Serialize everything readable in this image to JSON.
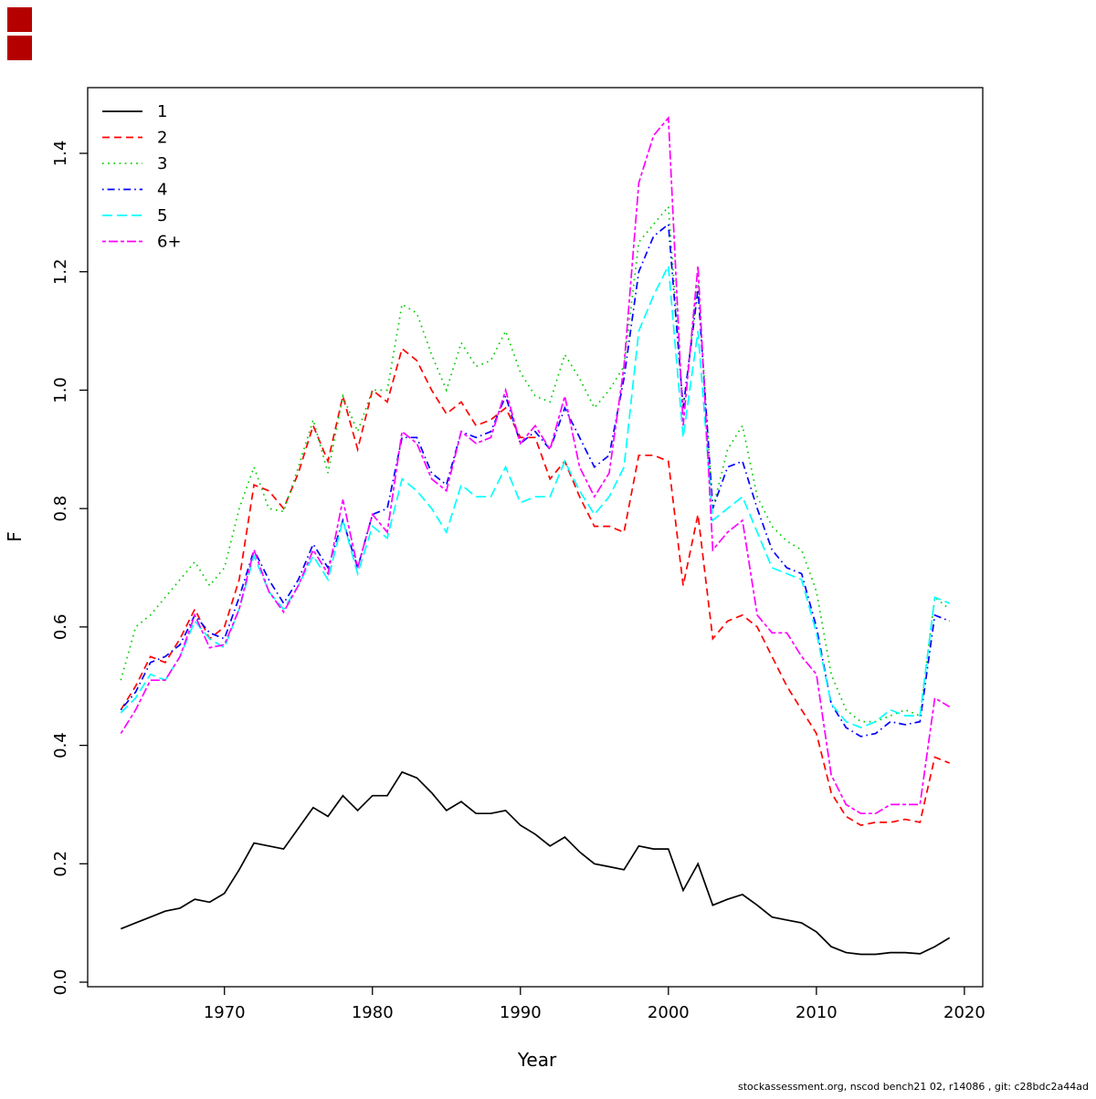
{
  "decorations": {
    "square_color": "#b50000"
  },
  "footer": {
    "credit": "stockassessment.org, nscod bench21 02, r14086 , git: c28bdc2a44ad"
  },
  "chart_data": {
    "type": "line",
    "title": "",
    "xlabel": "Year",
    "ylabel": "F",
    "xlim": [
      1963,
      2019
    ],
    "ylim": [
      0,
      1.46
    ],
    "xticks": [
      1970,
      1980,
      1990,
      2000,
      2010,
      2020
    ],
    "yticks": [
      0.0,
      0.2,
      0.4,
      0.6,
      0.8,
      1.0,
      1.2,
      1.4
    ],
    "grid": false,
    "legend_position": "top-left",
    "x": [
      1963,
      1964,
      1965,
      1966,
      1967,
      1968,
      1969,
      1970,
      1971,
      1972,
      1973,
      1974,
      1975,
      1976,
      1977,
      1978,
      1979,
      1980,
      1981,
      1982,
      1983,
      1984,
      1985,
      1986,
      1987,
      1988,
      1989,
      1990,
      1991,
      1992,
      1993,
      1994,
      1995,
      1996,
      1997,
      1998,
      1999,
      2000,
      2001,
      2002,
      2003,
      2004,
      2005,
      2006,
      2007,
      2008,
      2009,
      2010,
      2011,
      2012,
      2013,
      2014,
      2015,
      2016,
      2017,
      2018,
      2019
    ],
    "series": [
      {
        "name": "1",
        "color": "#000000",
        "linestyle": "solid",
        "values": [
          0.09,
          0.1,
          0.11,
          0.12,
          0.125,
          0.14,
          0.135,
          0.15,
          0.19,
          0.235,
          0.23,
          0.225,
          0.26,
          0.295,
          0.28,
          0.315,
          0.29,
          0.315,
          0.315,
          0.355,
          0.345,
          0.32,
          0.29,
          0.305,
          0.285,
          0.285,
          0.29,
          0.265,
          0.25,
          0.23,
          0.245,
          0.22,
          0.2,
          0.195,
          0.19,
          0.23,
          0.225,
          0.225,
          0.155,
          0.2,
          0.13,
          0.14,
          0.148,
          0.13,
          0.11,
          0.105,
          0.1,
          0.085,
          0.06,
          0.05,
          0.047,
          0.047,
          0.05,
          0.05,
          0.048,
          0.06,
          0.075
        ]
      },
      {
        "name": "2",
        "color": "#ff0000",
        "linestyle": "dashed",
        "values": [
          0.46,
          0.5,
          0.55,
          0.54,
          0.58,
          0.63,
          0.58,
          0.6,
          0.68,
          0.84,
          0.83,
          0.8,
          0.86,
          0.94,
          0.88,
          0.99,
          0.9,
          1.0,
          0.98,
          1.07,
          1.05,
          1.0,
          0.96,
          0.98,
          0.94,
          0.95,
          0.97,
          0.92,
          0.92,
          0.85,
          0.88,
          0.82,
          0.77,
          0.77,
          0.76,
          0.89,
          0.89,
          0.88,
          0.67,
          0.79,
          0.58,
          0.61,
          0.62,
          0.6,
          0.55,
          0.5,
          0.46,
          0.42,
          0.32,
          0.28,
          0.265,
          0.27,
          0.27,
          0.275,
          0.27,
          0.38,
          0.37
        ]
      },
      {
        "name": "3",
        "color": "#00cd00",
        "linestyle": "dotted",
        "values": [
          0.51,
          0.6,
          0.62,
          0.65,
          0.68,
          0.71,
          0.67,
          0.7,
          0.8,
          0.87,
          0.8,
          0.795,
          0.87,
          0.95,
          0.86,
          0.99,
          0.93,
          1.0,
          1.0,
          1.145,
          1.13,
          1.06,
          1.0,
          1.08,
          1.04,
          1.05,
          1.1,
          1.03,
          0.99,
          0.98,
          1.06,
          1.02,
          0.97,
          1.0,
          1.04,
          1.25,
          1.28,
          1.31,
          0.97,
          1.18,
          0.8,
          0.9,
          0.94,
          0.82,
          0.77,
          0.745,
          0.73,
          0.66,
          0.52,
          0.46,
          0.44,
          0.44,
          0.45,
          0.46,
          0.45,
          0.65,
          0.63
        ]
      },
      {
        "name": "4",
        "color": "#0000ff",
        "linestyle": "dotdash",
        "values": [
          0.46,
          0.49,
          0.54,
          0.55,
          0.57,
          0.62,
          0.59,
          0.58,
          0.65,
          0.73,
          0.68,
          0.64,
          0.68,
          0.74,
          0.7,
          0.78,
          0.7,
          0.79,
          0.8,
          0.92,
          0.92,
          0.86,
          0.84,
          0.93,
          0.92,
          0.93,
          0.99,
          0.91,
          0.93,
          0.9,
          0.97,
          0.92,
          0.87,
          0.89,
          1.02,
          1.2,
          1.26,
          1.28,
          0.97,
          1.17,
          0.8,
          0.87,
          0.88,
          0.8,
          0.73,
          0.7,
          0.69,
          0.6,
          0.47,
          0.43,
          0.415,
          0.42,
          0.44,
          0.435,
          0.44,
          0.62,
          0.61
        ]
      },
      {
        "name": "5",
        "color": "#00ffff",
        "linestyle": "longdash",
        "values": [
          0.455,
          0.48,
          0.52,
          0.51,
          0.55,
          0.61,
          0.58,
          0.565,
          0.63,
          0.72,
          0.66,
          0.63,
          0.67,
          0.72,
          0.68,
          0.78,
          0.69,
          0.77,
          0.75,
          0.85,
          0.83,
          0.8,
          0.76,
          0.84,
          0.82,
          0.82,
          0.87,
          0.81,
          0.82,
          0.82,
          0.88,
          0.83,
          0.79,
          0.82,
          0.87,
          1.1,
          1.16,
          1.21,
          0.92,
          1.1,
          0.78,
          0.8,
          0.82,
          0.76,
          0.7,
          0.69,
          0.68,
          0.59,
          0.47,
          0.44,
          0.43,
          0.44,
          0.46,
          0.45,
          0.45,
          0.65,
          0.64
        ]
      },
      {
        "name": "6+",
        "color": "#ff00ff",
        "linestyle": "twodash",
        "values": [
          0.42,
          0.46,
          0.51,
          0.51,
          0.55,
          0.62,
          0.565,
          0.57,
          0.63,
          0.73,
          0.66,
          0.625,
          0.67,
          0.73,
          0.69,
          0.815,
          0.7,
          0.79,
          0.76,
          0.93,
          0.91,
          0.85,
          0.83,
          0.93,
          0.91,
          0.92,
          1.0,
          0.91,
          0.94,
          0.9,
          0.99,
          0.87,
          0.82,
          0.86,
          1.04,
          1.35,
          1.43,
          1.46,
          0.94,
          1.21,
          0.73,
          0.76,
          0.78,
          0.62,
          0.59,
          0.59,
          0.55,
          0.52,
          0.35,
          0.3,
          0.285,
          0.285,
          0.3,
          0.3,
          0.3,
          0.48,
          0.465
        ]
      }
    ]
  }
}
